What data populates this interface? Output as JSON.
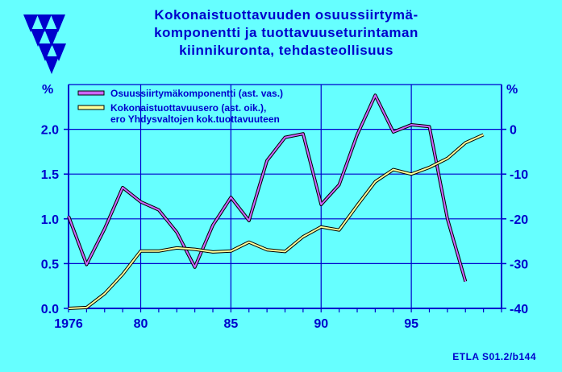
{
  "title": {
    "line1": "Kokonaistuottavuuden  osuussiirtymä-",
    "line2": "komponentti  ja  tuottavuuseturintaman",
    "line3": "kiinnikuronta,  tehdasteollisuus"
  },
  "source": "ETLA S01.2/b144",
  "colors": {
    "background": "#66FFFF",
    "text": "#0000CC",
    "grid": "#0000CC",
    "series1": "#CC66FF",
    "series2": "#FFFF99",
    "logo": "#0000CC"
  },
  "chart_data": {
    "type": "line",
    "x_ticks": [
      1976,
      80,
      85,
      90,
      95
    ],
    "x_tick_labels": [
      "1976",
      "80",
      "85",
      "90",
      "95"
    ],
    "xlim": [
      1976,
      2000
    ],
    "y_left": {
      "unit": "%",
      "ticks": [
        0.0,
        0.5,
        1.0,
        1.5,
        2.0
      ],
      "tick_labels": [
        "0.0",
        "0.5",
        "1.0",
        "1.5",
        "2.0"
      ],
      "ylim": [
        0.0,
        2.5
      ]
    },
    "y_right": {
      "unit": "%",
      "ticks": [
        -40,
        -30,
        -20,
        -10,
        0
      ],
      "tick_labels": [
        "-40",
        "-30",
        "-20",
        "-10",
        "0"
      ],
      "ylim": [
        -40,
        10
      ]
    },
    "legend_position": "top-left",
    "grid": true,
    "series": [
      {
        "name": "Osuussiirtymäkomponentti (ast. vas.)",
        "axis": "left",
        "color": "#CC66FF",
        "x": [
          1976,
          1977,
          1978,
          1979,
          1980,
          1981,
          1982,
          1983,
          1984,
          1985,
          1986,
          1987,
          1988,
          1989,
          1990,
          1991,
          1992,
          1993,
          1994,
          1995,
          1996,
          1997,
          1998
        ],
        "y": [
          1.03,
          0.49,
          0.89,
          1.35,
          1.19,
          1.1,
          0.85,
          0.46,
          0.93,
          1.24,
          0.98,
          1.65,
          1.91,
          1.95,
          1.16,
          1.38,
          1.94,
          2.38,
          1.97,
          2.05,
          2.03,
          1.0,
          0.3
        ]
      },
      {
        "name": "Kokonaistuottavuusero (ast. oik.),\nero Yhdysvaltojen kok.tuottavuuteen",
        "axis": "right",
        "color": "#FFFF99",
        "x": [
          1976,
          1977,
          1978,
          1979,
          1980,
          1981,
          1982,
          1983,
          1984,
          1985,
          1986,
          1987,
          1988,
          1989,
          1990,
          1991,
          1992,
          1993,
          1994,
          1995,
          1996,
          1997,
          1998,
          1999
        ],
        "y": [
          -40.0,
          -39.8,
          -36.7,
          -32.4,
          -27.2,
          -27.2,
          -26.5,
          -26.8,
          -27.4,
          -27.2,
          -25.2,
          -26.9,
          -27.3,
          -24.0,
          -21.8,
          -22.5,
          -17.0,
          -11.7,
          -9.0,
          -10.0,
          -8.5,
          -6.5,
          -3.0,
          -1.2
        ]
      }
    ]
  }
}
